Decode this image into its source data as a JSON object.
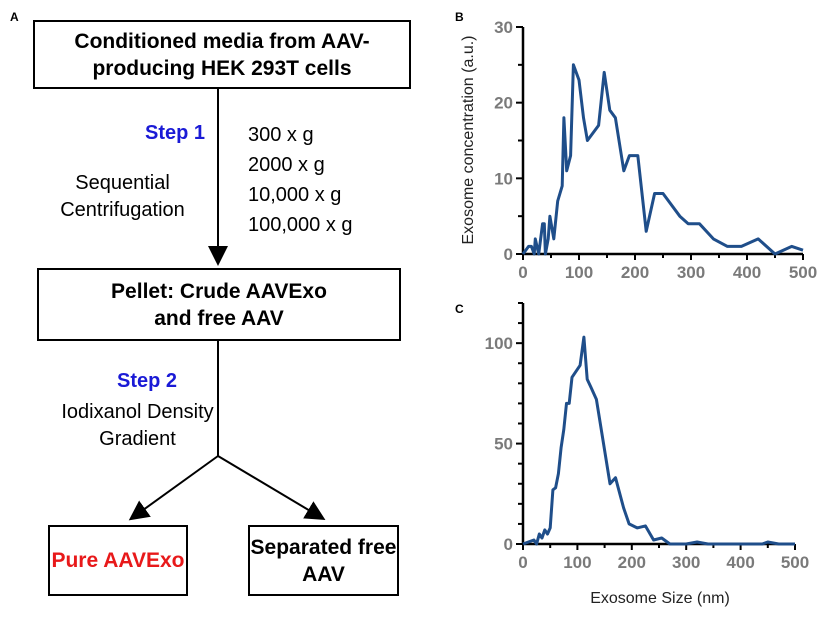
{
  "panel_labels": {
    "a": "A",
    "b": "B",
    "c": "C"
  },
  "flowchart": {
    "box1": "Conditioned media from AAV-producing HEK 293T cells",
    "step1": "Step 1",
    "step1_desc": "Sequential Centrifugation",
    "centrifugation": [
      "300 x g",
      "2000 x g",
      "10,000 x g",
      "100,000 x g"
    ],
    "box2": "Pellet: Crude AAVExo and free AAV",
    "step2": "Step 2",
    "step2_desc": "Iodixanol Density Gradient",
    "box3": "Pure AAVExo",
    "box4": "Separated free AAV",
    "colors": {
      "step": "#1a1ad6",
      "pure": "#e8191a"
    }
  },
  "chart_data": [
    {
      "type": "line",
      "panel": "B",
      "ylabel": "Exosome concentration (a.u.)",
      "xlabel": "",
      "xlim": [
        0,
        500
      ],
      "ylim": [
        0,
        30
      ],
      "xticks": [
        "0",
        "100",
        "200",
        "300",
        "400",
        "500"
      ],
      "yticks": [
        "0",
        "10",
        "20",
        "30"
      ],
      "color": "#1f4e8a",
      "x": [
        0,
        10,
        15,
        20,
        22,
        28,
        35,
        38,
        40,
        45,
        48,
        55,
        62,
        70,
        73,
        78,
        85,
        90,
        100,
        108,
        115,
        135,
        145,
        155,
        165,
        180,
        190,
        205,
        220,
        235,
        250,
        280,
        295,
        315,
        340,
        365,
        390,
        420,
        450,
        480,
        500
      ],
      "y": [
        0,
        1,
        1,
        0,
        2,
        0,
        4,
        4,
        0,
        2,
        5,
        2,
        7,
        9,
        18,
        11,
        13,
        25,
        23,
        18,
        15,
        17,
        24,
        19,
        18,
        11,
        13,
        13,
        3,
        8,
        8,
        5,
        4,
        4,
        2,
        1,
        1,
        2,
        0,
        1,
        0.5
      ]
    },
    {
      "type": "line",
      "panel": "C",
      "ylabel": "",
      "xlabel": "Exosome Size (nm)",
      "xlim": [
        0,
        500
      ],
      "ylim": [
        0,
        120
      ],
      "xticks": [
        "0",
        "100",
        "200",
        "300",
        "400",
        "500"
      ],
      "yticks": [
        "0",
        "50",
        "100"
      ],
      "color": "#1f4e8a",
      "x": [
        0,
        10,
        20,
        25,
        30,
        35,
        40,
        45,
        50,
        55,
        60,
        65,
        70,
        75,
        80,
        85,
        90,
        100,
        105,
        112,
        118,
        125,
        135,
        145,
        160,
        170,
        185,
        195,
        210,
        225,
        240,
        255,
        270,
        300,
        320,
        340,
        440,
        450,
        470,
        500
      ],
      "y": [
        0,
        1,
        2,
        0,
        5,
        3,
        7,
        5,
        8,
        27,
        28,
        35,
        48,
        57,
        70,
        70,
        83,
        87,
        89,
        103,
        82,
        78,
        72,
        55,
        30,
        33,
        18,
        10,
        8,
        9,
        2,
        3,
        0,
        0,
        1,
        0,
        0,
        1,
        0,
        0
      ]
    }
  ]
}
